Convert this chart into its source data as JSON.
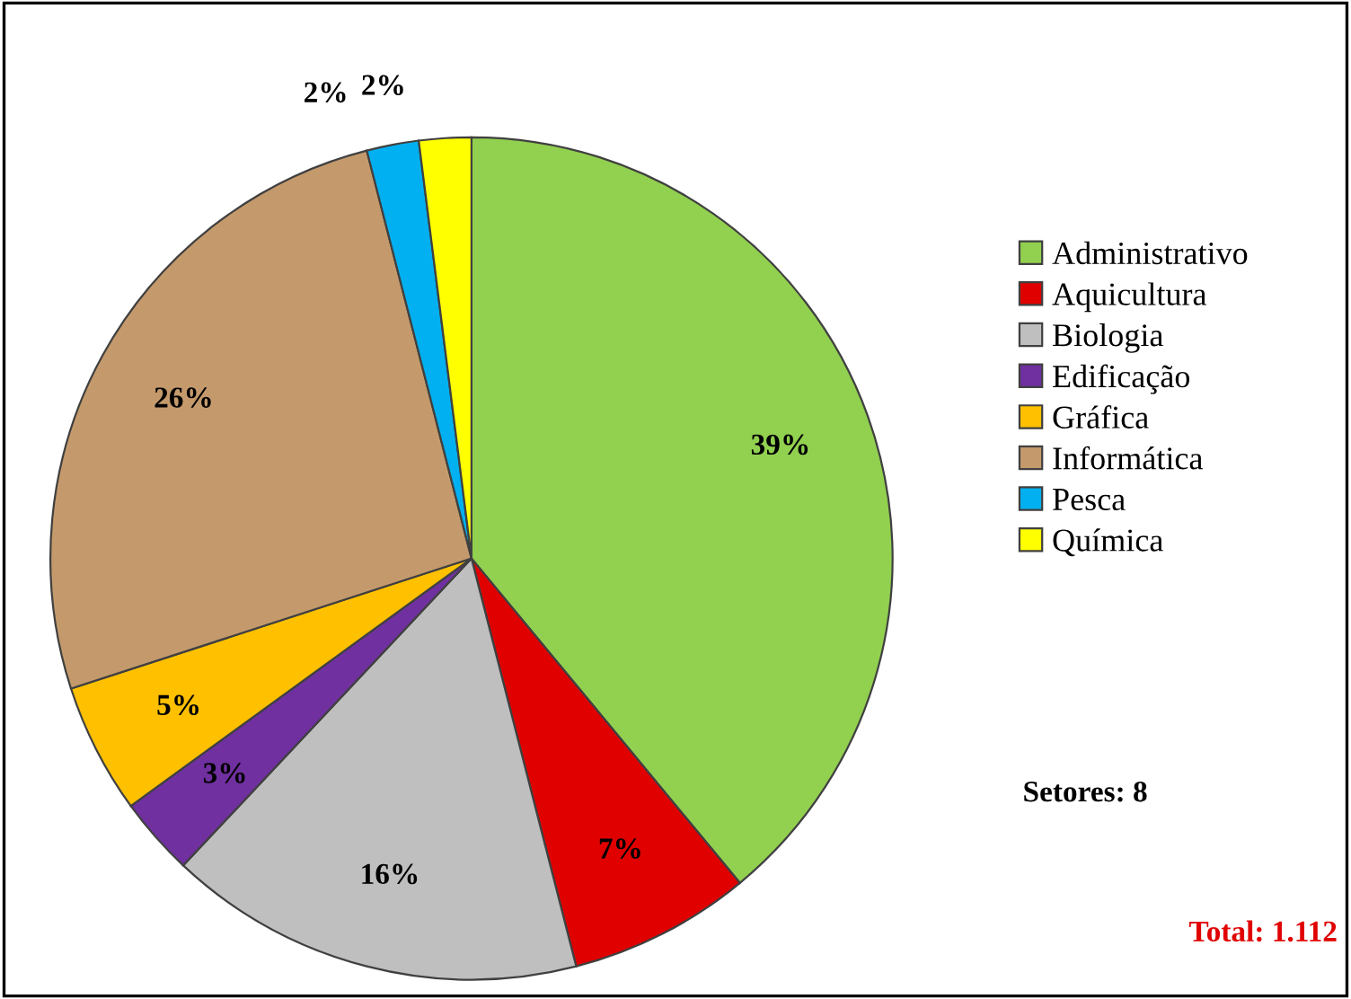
{
  "chart_data": {
    "type": "pie",
    "categories": [
      "Administrativo",
      "Aquicultura",
      "Biologia",
      "Edificação",
      "Gráfica",
      "Informática",
      "Pesca",
      "Química"
    ],
    "values": [
      39,
      7,
      16,
      3,
      5,
      26,
      2,
      2
    ],
    "value_labels": [
      "39%",
      "7%",
      "16%",
      "3%",
      "5%",
      "26%",
      "2%",
      "2%"
    ],
    "colors": [
      "#92d050",
      "#e00000",
      "#bfbfbf",
      "#7030a0",
      "#ffc000",
      "#c49a6c",
      "#00b0f0",
      "#ffff00"
    ],
    "legend": "right",
    "annotations": [
      "Setores: 8",
      "Total: 1.112"
    ]
  }
}
